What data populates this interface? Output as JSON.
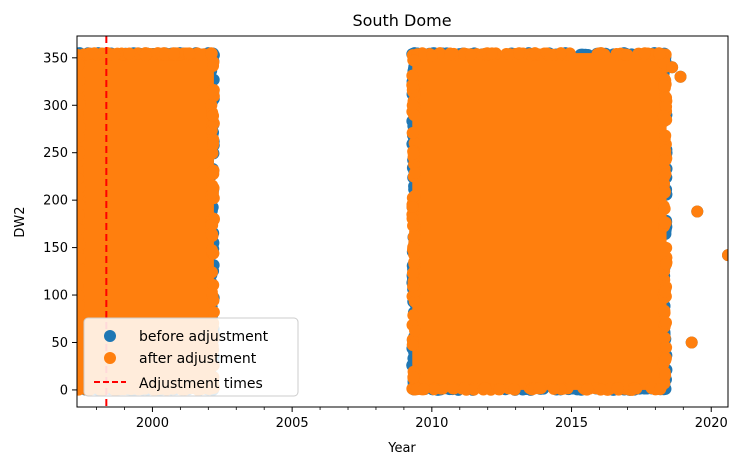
{
  "chart_data": {
    "type": "scatter",
    "title": "South Dome",
    "xlabel": "Year",
    "ylabel": "DW2",
    "xlim": [
      1997.3,
      2020.6
    ],
    "ylim": [
      -18,
      373
    ],
    "x_ticks": [
      2000,
      2005,
      2010,
      2015,
      2020
    ],
    "y_ticks": [
      0,
      50,
      100,
      150,
      200,
      250,
      300,
      350
    ],
    "grid": false,
    "legend_position": "lower-left",
    "legend": [
      {
        "label": "before adjustment",
        "marker": "circle",
        "color": "#1f77b4"
      },
      {
        "label": "after adjustment",
        "marker": "circle",
        "color": "#ff7f0e"
      },
      {
        "label": "Adjustment times",
        "marker": "dashed-line",
        "color": "#ff0000"
      }
    ],
    "series": [
      {
        "name": "before adjustment",
        "color": "#1f77b4",
        "note_hidden_under": "after adjustment",
        "dense_blocks": [
          {
            "x_start": 1997.3,
            "x_end": 2002.2,
            "y_min": 0,
            "y_max": 355
          },
          {
            "x_start": 2009.3,
            "x_end": 2018.4,
            "y_min": 0,
            "y_max": 355
          }
        ],
        "points": [
          [
            2018.6,
            340
          ],
          [
            2018.9,
            330
          ],
          [
            2019.3,
            50
          ],
          [
            2019.5,
            188
          ],
          [
            2020.6,
            142
          ]
        ]
      },
      {
        "name": "after adjustment",
        "color": "#ff7f0e",
        "dense_blocks": [
          {
            "x_start": 1997.3,
            "x_end": 2002.2,
            "y_min": 0,
            "y_max": 355
          },
          {
            "x_start": 2009.3,
            "x_end": 2018.4,
            "y_min": 0,
            "y_max": 355
          }
        ],
        "points": [
          [
            2018.6,
            340
          ],
          [
            2018.9,
            330
          ],
          [
            2019.3,
            50
          ],
          [
            2019.5,
            188
          ],
          [
            2020.6,
            142
          ]
        ]
      }
    ],
    "vlines": [
      {
        "name": "Adjustment times",
        "x": 1998.35,
        "color": "#ff0000",
        "style": "dashed"
      }
    ]
  }
}
